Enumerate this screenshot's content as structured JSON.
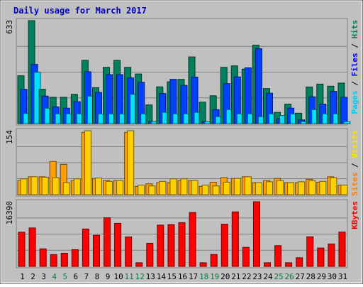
{
  "chart_data": {
    "type": "bar",
    "title": "Daily usage for March 2017",
    "categories": [
      "1",
      "2",
      "3",
      "4",
      "5",
      "6",
      "7",
      "8",
      "9",
      "10",
      "11",
      "12",
      "13",
      "14",
      "15",
      "16",
      "17",
      "18",
      "19",
      "20",
      "21",
      "22",
      "23",
      "24",
      "25",
      "26",
      "27",
      "28",
      "29",
      "30",
      "31"
    ],
    "weekend_days": [
      "4",
      "5",
      "11",
      "12",
      "18",
      "19",
      "25",
      "26"
    ],
    "panels": [
      {
        "name": "hits-files-pages",
        "ymax_label": "633",
        "ymax": 633,
        "axis_legend": [
          {
            "text": "Pages",
            "color": "#00c8ff"
          },
          {
            "text": " / ",
            "color": "#000000"
          },
          {
            "text": "Files",
            "color": "#0000ff"
          },
          {
            "text": " / ",
            "color": "#000000"
          },
          {
            "text": "Hits",
            "color": "#008060"
          }
        ],
        "series": [
          {
            "name": "Hits",
            "color": "#00805c",
            "values": [
              294,
              633,
              211,
              162,
              162,
              180,
              389,
              221,
              346,
              389,
              346,
              305,
              115,
              226,
              257,
              272,
              410,
              132,
              171,
              346,
              355,
              335,
              482,
              215,
              69,
              120,
              64,
              225,
              243,
              230,
              249
            ]
          },
          {
            "name": "Files",
            "color": "#0040ff",
            "values": [
              211,
              364,
              169,
              103,
              95,
              135,
              319,
              192,
              301,
              301,
              281,
              254,
              12,
              185,
              272,
              235,
              286,
              12,
              86,
              246,
              287,
              343,
              460,
              187,
              30,
              95,
              23,
              165,
              120,
              198,
              162
            ]
          },
          {
            "name": "Pages",
            "color": "#00e0ff",
            "values": [
              62,
              315,
              94,
              60,
              60,
              60,
              169,
              60,
              60,
              60,
              180,
              60,
              12,
              69,
              60,
              60,
              69,
              12,
              43,
              86,
              60,
              60,
              43,
              60,
              50,
              60,
              12,
              86,
              60,
              60,
              12
            ]
          }
        ]
      },
      {
        "name": "visits-sites",
        "ymax_label": "154",
        "ymax": 154,
        "axis_legend": [
          {
            "text": "Sites",
            "color": "#ff8000"
          },
          {
            "text": " / ",
            "color": "#000000"
          },
          {
            "text": "Visits",
            "color": "#ffe000"
          }
        ],
        "series": [
          {
            "name": "Visits",
            "color": "#ffa000",
            "values": [
              34,
              43,
              43,
              80,
              73,
              34,
              150,
              39,
              34,
              34,
              150,
              20,
              26,
              29,
              29,
              34,
              34,
              20,
              30,
              41,
              39,
              43,
              29,
              34,
              39,
              29,
              29,
              37,
              30,
              43,
              23
            ]
          },
          {
            "name": "Sites",
            "color": "#ffd000",
            "values": [
              38,
              43,
              42,
              41,
              29,
              38,
              154,
              40,
              32,
              34,
              154,
              23,
              21,
              32,
              38,
              38,
              34,
              23,
              21,
              30,
              39,
              43,
              29,
              31,
              34,
              29,
              31,
              34,
              32,
              41,
              23
            ]
          }
        ]
      },
      {
        "name": "kbytes",
        "ymax_label": "16390",
        "ymax": 16390,
        "axis_legend": [
          {
            "text": "KBytes",
            "color": "#ff0000"
          }
        ],
        "series": [
          {
            "name": "KBytes",
            "color": "#ff0000",
            "values": [
              8680,
              9750,
              4450,
              2990,
              3340,
              4240,
              9480,
              7890,
              12330,
              10910,
              7470,
              911,
              5860,
              10470,
              10600,
              11090,
              13680,
              911,
              3020,
              10700,
              13820,
              4830,
              16390,
              911,
              5270,
              911,
              2190,
              7510,
              4660,
              5690,
              8720
            ]
          }
        ]
      }
    ]
  }
}
